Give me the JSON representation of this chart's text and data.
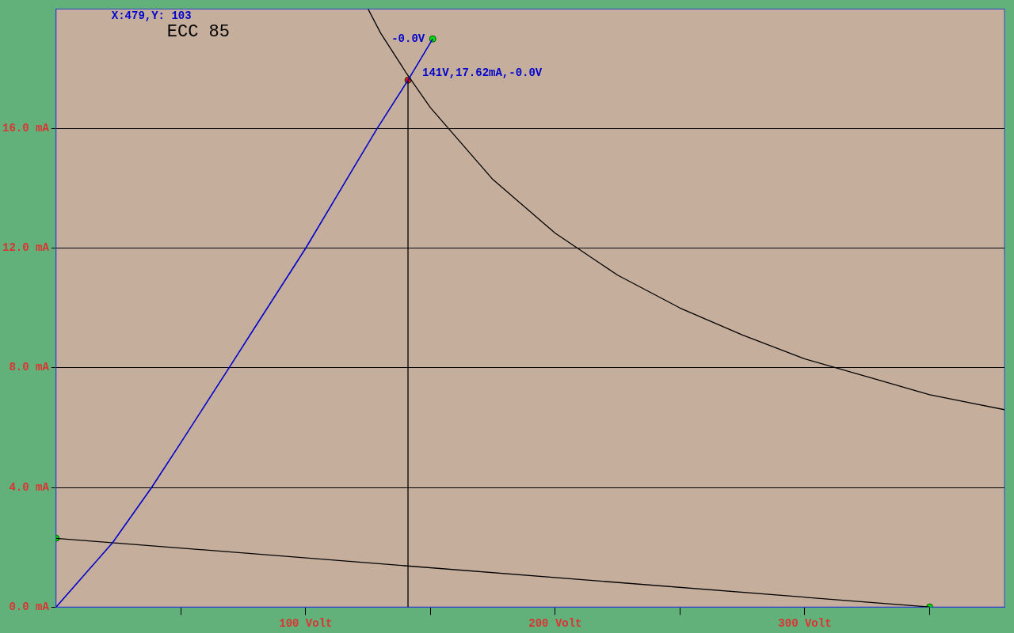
{
  "chart_data": {
    "type": "line",
    "title": "ECC 85",
    "annotations": [
      "X:479,Y: 103",
      {
        "text": "141V,17.62mA,-0.0V",
        "x": 141,
        "y": 17.62
      }
    ],
    "xlim": [
      0,
      380
    ],
    "ylim": [
      0,
      20
    ],
    "xticks": [
      {
        "value": 50,
        "label": null
      },
      {
        "value": 100,
        "label": "100 Volt"
      },
      {
        "value": 150,
        "label": null
      },
      {
        "value": 200,
        "label": "200 Volt"
      },
      {
        "value": 250,
        "label": null
      },
      {
        "value": 300,
        "label": "300 Volt"
      },
      {
        "value": 350,
        "label": null
      }
    ],
    "yticks": [
      {
        "value": 0,
        "label": "0.0 mA"
      },
      {
        "value": 4,
        "label": "4.0 mA"
      },
      {
        "value": 8,
        "label": "8.0 mA"
      },
      {
        "value": 12,
        "label": "12.0 mA"
      },
      {
        "value": 16,
        "label": "16.0 mA"
      }
    ],
    "grid": "y",
    "legend": false,
    "series": [
      {
        "name": "-0.0V",
        "color": "#0000cc",
        "marker": "none",
        "x": [
          0,
          10,
          22.6,
          38.3,
          50,
          69.3,
          80,
          100,
          120,
          128.6,
          141,
          150.9
        ],
        "values": [
          0,
          0.95,
          2.15,
          4.0,
          5.5,
          8.0,
          9.4,
          12.0,
          14.8,
          16.0,
          17.62,
          19.0
        ]
      },
      {
        "color": "#000000",
        "marker": "none",
        "x": [
          125,
          130,
          140,
          150,
          175,
          200,
          225,
          250,
          275,
          300,
          325,
          350,
          380
        ],
        "values": [
          20,
          19.2,
          17.9,
          16.7,
          14.3,
          12.5,
          11.1,
          10,
          9.1,
          8.3,
          7.7,
          7.1,
          6.6
        ]
      },
      {
        "color": "#000000",
        "marker": "none",
        "x": [
          0,
          350
        ],
        "values": [
          2.3,
          0
        ]
      },
      {
        "color": "#000000",
        "marker": "none",
        "x": [
          141,
          141
        ],
        "values": [
          17.62,
          0
        ]
      },
      {
        "type": "scatter",
        "color": "#00dd00",
        "marker": "circle",
        "x": [
          0,
          350,
          150.9
        ],
        "values": [
          2.3,
          0,
          19.0
        ]
      },
      {
        "type": "scatter",
        "color": "#ff0000",
        "marker": "circle",
        "x": [
          141
        ],
        "values": [
          17.62
        ]
      }
    ]
  }
}
